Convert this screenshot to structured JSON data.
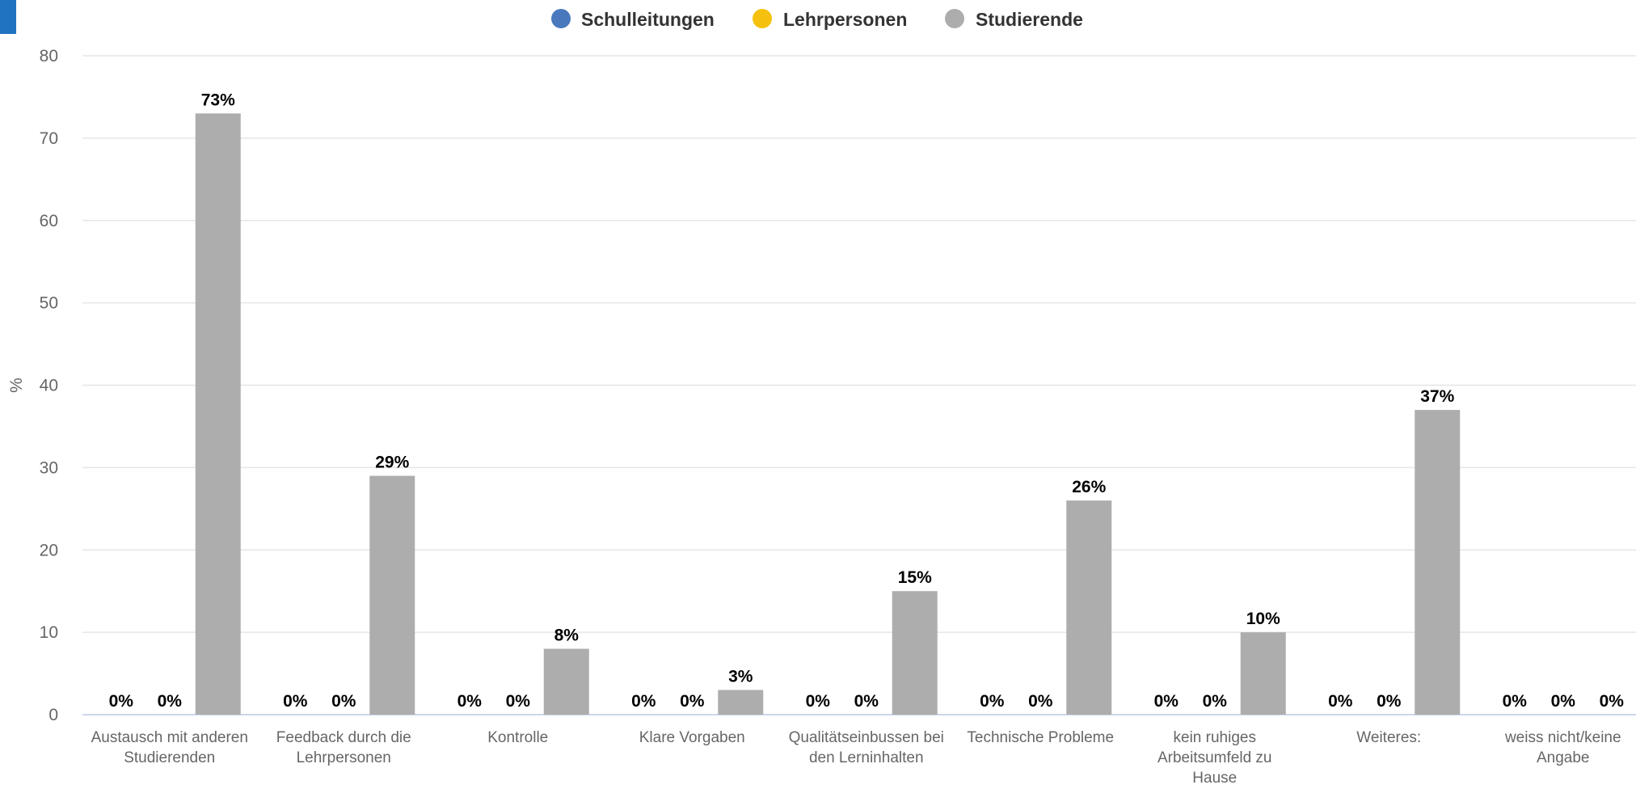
{
  "chart_data": {
    "type": "bar",
    "ylabel": "%",
    "ylim": [
      0,
      80
    ],
    "yticks": [
      0,
      10,
      20,
      30,
      40,
      50,
      60,
      70,
      80
    ],
    "grid": true,
    "legend_position": "top-center",
    "categories": [
      [
        "Austausch mit anderen",
        "Studierenden"
      ],
      [
        "Feedback durch die",
        "Lehrpersonen"
      ],
      [
        "Kontrolle"
      ],
      [
        "Klare Vorgaben"
      ],
      [
        "Qualitätseinbussen bei",
        "den Lerninhalten"
      ],
      [
        "Technische Probleme"
      ],
      [
        "kein ruhiges",
        "Arbeitsumfeld zu",
        "Hause"
      ],
      [
        "Weiteres:"
      ],
      [
        "weiss nicht/keine",
        "Angabe"
      ]
    ],
    "series": [
      {
        "name": "Schulleitungen",
        "color": "#4a78bd",
        "values": [
          0,
          0,
          0,
          0,
          0,
          0,
          0,
          0,
          0
        ]
      },
      {
        "name": "Lehrpersonen",
        "color": "#f5c10e",
        "values": [
          0,
          0,
          0,
          0,
          0,
          0,
          0,
          0,
          0
        ]
      },
      {
        "name": "Studierende",
        "color": "#adadad",
        "values": [
          73,
          29,
          8,
          3,
          15,
          26,
          10,
          37,
          0
        ]
      }
    ],
    "value_suffix": "%"
  }
}
